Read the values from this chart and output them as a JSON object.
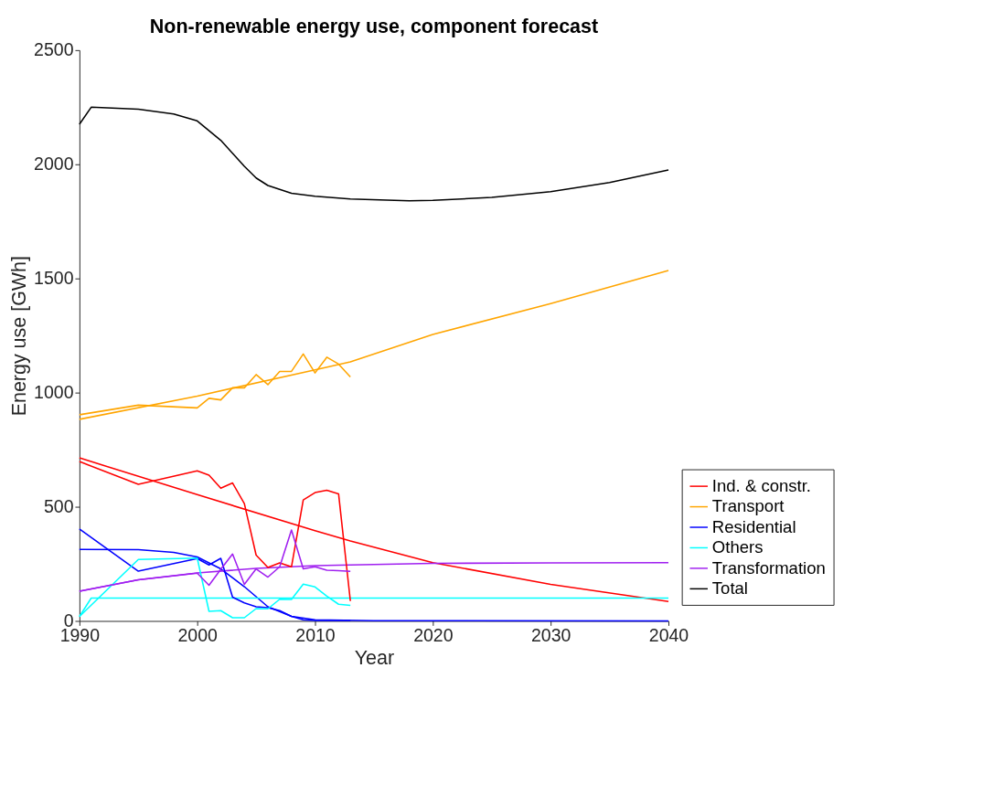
{
  "chart_data": {
    "type": "line",
    "title": "Non-renewable energy use, component forecast",
    "xlabel": "Year",
    "ylabel": "Energy use [GWh]",
    "xlim": [
      1990,
      2040
    ],
    "xticks": [
      1990,
      2000,
      2010,
      2020,
      2030,
      2040
    ],
    "ylim": [
      0,
      2500
    ],
    "yticks": [
      0,
      500,
      1000,
      1500,
      2000,
      2500
    ],
    "grid": false,
    "legend": "bottom right",
    "line_style": "solid",
    "marker": "none",
    "series": [
      {
        "name": "Ind. & constr.",
        "color": "#ff0000",
        "x": [
          1990,
          2000,
          2010,
          2013,
          2020,
          2030,
          2040
        ],
        "values": [
          714,
          553,
          395,
          350,
          255,
          160,
          85
        ]
      },
      {
        "name": "Transport",
        "color": "#ffa500",
        "x": [
          1990,
          2000,
          2010,
          2013,
          2020,
          2030,
          2040
        ],
        "values": [
          883,
          985,
          1100,
          1135,
          1255,
          1390,
          1535
        ]
      },
      {
        "name": "Residential",
        "color": "#0000ff",
        "x": [
          1990,
          1995,
          1998,
          2000,
          2002,
          2004,
          2006,
          2008,
          2010,
          2015,
          2040
        ],
        "values": [
          313,
          312,
          300,
          280,
          228,
          150,
          62,
          20,
          5,
          1,
          0
        ]
      },
      {
        "name": "Others",
        "color": "#00ffff",
        "x": [
          1990,
          1991,
          2040
        ],
        "values": [
          19,
          100,
          100
        ]
      },
      {
        "name": "Transformation",
        "color": "#a020f0",
        "x": [
          1990,
          1995,
          2000,
          2005,
          2010,
          2020,
          2030,
          2040
        ],
        "values": [
          130,
          180,
          210,
          230,
          242,
          252,
          254,
          255
        ]
      },
      {
        "name": "Total",
        "color": "#000000",
        "x": [
          1990,
          1991,
          1995,
          1998,
          2000,
          2002,
          2004,
          2005,
          2006,
          2008,
          2010,
          2013,
          2018,
          2020,
          2025,
          2030,
          2035,
          2040
        ],
        "values": [
          2175,
          2250,
          2241,
          2220,
          2190,
          2105,
          1991,
          1940,
          1907,
          1873,
          1860,
          1848,
          1840,
          1842,
          1855,
          1880,
          1920,
          1975
        ]
      },
      {
        "color": "#ff0000",
        "x": [
          1990,
          1995,
          2000,
          2001,
          2002,
          2003,
          2004,
          2005,
          2006,
          2007,
          2008,
          2009,
          2010,
          2011,
          2012,
          2013
        ],
        "values": [
          698,
          598,
          657,
          638,
          581,
          604,
          514,
          288,
          234,
          254,
          237,
          530,
          562,
          572,
          556,
          87
        ]
      },
      {
        "color": "#ffa500",
        "x": [
          1990,
          1995,
          2000,
          2001,
          2002,
          2003,
          2004,
          2005,
          2006,
          2007,
          2008,
          2009,
          2010,
          2011,
          2012,
          2013
        ],
        "values": [
          903,
          945,
          933,
          975,
          968,
          1021,
          1021,
          1079,
          1035,
          1093,
          1093,
          1169,
          1086,
          1155,
          1125,
          1069
        ]
      },
      {
        "color": "#0000ff",
        "x": [
          1990,
          1995,
          2000,
          2001,
          2002,
          2003,
          2004,
          2005,
          2006,
          2007,
          2008,
          2009,
          2010,
          2011,
          2012,
          2013
        ],
        "values": [
          403,
          218,
          273,
          245,
          274,
          104,
          79,
          62,
          58,
          45,
          20,
          5,
          2,
          2,
          2,
          2
        ]
      },
      {
        "color": "#00ffff",
        "x": [
          1990,
          1995,
          2000,
          2001,
          2002,
          2003,
          2004,
          2005,
          2006,
          2007,
          2008,
          2009,
          2010,
          2011,
          2012,
          2013
        ],
        "values": [
          19,
          269,
          275,
          42,
          45,
          14,
          14,
          54,
          53,
          95,
          94,
          161,
          149,
          109,
          73,
          68
        ]
      },
      {
        "color": "#a020f0",
        "x": [
          1990,
          1995,
          2000,
          2001,
          2002,
          2003,
          2004,
          2005,
          2006,
          2007,
          2008,
          2009,
          2010,
          2011,
          2012,
          2013
        ],
        "values": [
          130,
          180,
          209,
          156,
          226,
          293,
          160,
          228,
          192,
          237,
          398,
          228,
          237,
          222,
          220,
          217
        ]
      }
    ]
  }
}
